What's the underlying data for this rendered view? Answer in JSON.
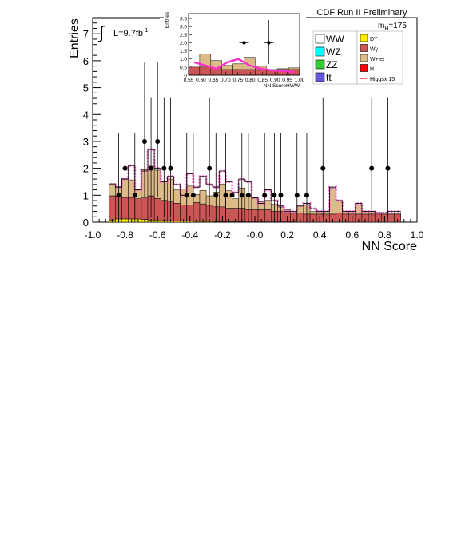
{
  "chart_data": {
    "type": "histogram-stacked",
    "title": "CDF Run II Preliminary",
    "xlabel": "NN Score",
    "ylabel": "Entries",
    "xlim": [
      -1.0,
      1.0
    ],
    "ylim": [
      0,
      7.6
    ],
    "x_ticks": [
      "-1.0",
      "-0.8",
      "-0.6",
      "-0.4",
      "-0.2",
      "-0.0",
      "0.2",
      "0.4",
      "0.6",
      "0.8",
      "1.0"
    ],
    "y_ticks": [
      "0",
      "1",
      "2",
      "3",
      "4",
      "5",
      "6",
      "7"
    ],
    "luminosity_label": "L=9.7fb",
    "luminosity_exp": "-1",
    "mass_label": "m",
    "mass_sub": "H",
    "mass_value": "=175",
    "legend_left": [
      {
        "label": "WW",
        "color": "#ffffff"
      },
      {
        "label": "WZ",
        "color": "#00ffff"
      },
      {
        "label": "ZZ",
        "color": "#33cc33"
      },
      {
        "label": "tt",
        "color": "#6655dd"
      }
    ],
    "legend_right": [
      {
        "label": "DY",
        "color": "#ffee00"
      },
      {
        "label": "Wγ",
        "color": "#cc5555"
      },
      {
        "label": "W+jet",
        "color": "#ddbb88"
      },
      {
        "label": "H",
        "color": "#ff0000"
      },
      {
        "label": "Higgsx 15",
        "color": "#ff0000"
      }
    ],
    "bin_edges_start": -0.9,
    "bin_width": 0.04,
    "stack_order": [
      "DY",
      "Wγ",
      "W+jet"
    ],
    "bins": {
      "DY": [
        0.08,
        0.12,
        0.12,
        0.12,
        0.12,
        0.1,
        0.08,
        0.08,
        0.06,
        0.05,
        0.05,
        0.04,
        0.04,
        0.03,
        0.03,
        0.03,
        0.02,
        0.02,
        0.02,
        0.02,
        0.02,
        0.01,
        0.01,
        0.01,
        0.01,
        0.01,
        0.01,
        0.01,
        0.01,
        0.0,
        0.0,
        0.0,
        0.0,
        0.0,
        0.0,
        0.0,
        0.0,
        0.0,
        0.0,
        0.0,
        0.0,
        0.0,
        0.0,
        0.0,
        0.0
      ],
      "Wg": [
        0.9,
        0.85,
        0.8,
        0.8,
        0.75,
        0.8,
        0.9,
        0.8,
        0.75,
        0.7,
        0.65,
        0.6,
        0.6,
        0.7,
        0.65,
        0.6,
        0.55,
        0.55,
        0.5,
        0.5,
        0.5,
        0.45,
        0.45,
        0.45,
        0.45,
        0.4,
        0.4,
        0.35,
        0.35,
        0.35,
        0.3,
        0.3,
        0.3,
        0.3,
        0.3,
        0.35,
        0.3,
        0.3,
        0.3,
        0.3,
        0.3,
        0.3,
        0.3,
        0.3,
        0.3
      ],
      "Wjet": [
        0.45,
        0.35,
        0.7,
        0.65,
        0.35,
        1.05,
        1.1,
        1.05,
        0.7,
        0.85,
        0.5,
        0.6,
        0.7,
        0.3,
        0.5,
        0.35,
        0.55,
        0.85,
        0.65,
        0.35,
        0.75,
        0.55,
        0.45,
        0.3,
        0.35,
        0.25,
        0.15,
        0.1,
        0.0,
        0.25,
        0.35,
        0.1,
        0.1,
        0.1,
        0.95,
        0.45,
        0.1,
        0.1,
        0.35,
        0.1,
        0.1,
        0.05,
        0.05,
        0.05,
        0.05
      ]
    },
    "top_line": [
      1.4,
      1.3,
      1.6,
      2.1,
      1.2,
      1.9,
      2.7,
      2.0,
      1.5,
      1.7,
      1.4,
      1.0,
      1.8,
      1.3,
      1.7,
      1.4,
      1.3,
      1.9,
      1.5,
      1.1,
      1.6,
      1.5,
      0.9,
      0.7,
      1.2,
      0.8,
      0.6,
      0.4,
      0.4,
      0.6,
      0.7,
      0.5,
      0.4,
      0.4,
      1.3,
      0.8,
      0.4,
      0.4,
      0.7,
      0.4,
      0.4,
      0.35,
      0.35,
      0.4,
      0.4
    ],
    "data_points": [
      {
        "x": -0.84,
        "y": 1
      },
      {
        "x": -0.8,
        "y": 2
      },
      {
        "x": -0.74,
        "y": 1
      },
      {
        "x": -0.68,
        "y": 3
      },
      {
        "x": -0.64,
        "y": 2
      },
      {
        "x": -0.6,
        "y": 3
      },
      {
        "x": -0.56,
        "y": 2
      },
      {
        "x": -0.52,
        "y": 2
      },
      {
        "x": -0.42,
        "y": 1
      },
      {
        "x": -0.38,
        "y": 1
      },
      {
        "x": -0.28,
        "y": 2
      },
      {
        "x": -0.24,
        "y": 1
      },
      {
        "x": -0.18,
        "y": 1
      },
      {
        "x": -0.14,
        "y": 1
      },
      {
        "x": -0.08,
        "y": 1
      },
      {
        "x": -0.04,
        "y": 1
      },
      {
        "x": 0.06,
        "y": 1
      },
      {
        "x": 0.12,
        "y": 1
      },
      {
        "x": 0.16,
        "y": 1
      },
      {
        "x": 0.26,
        "y": 1
      },
      {
        "x": 0.32,
        "y": 1
      },
      {
        "x": 0.42,
        "y": 2
      },
      {
        "x": 0.72,
        "y": 2
      },
      {
        "x": 0.82,
        "y": 2
      }
    ],
    "inset": {
      "xlabel": "NN ScoreHWW",
      "ylabel": "Entries",
      "xlim": [
        0.55,
        1.0
      ],
      "ylim": [
        0,
        3.8
      ],
      "x_ticks": [
        "0.55",
        "0.60",
        "0.65",
        "0.70",
        "0.75",
        "0.80",
        "0.85",
        "0.90",
        "0.95",
        "1.00"
      ],
      "y_ticks": [
        "0",
        "0.5",
        "1.0",
        "1.5",
        "2.0",
        "2.5",
        "3.0",
        "3.5"
      ],
      "hist": [
        0.25,
        1.3,
        0.9,
        0.6,
        0.7,
        1.1,
        0.55,
        0.3,
        0.4,
        0.45
      ],
      "red": [
        0.5,
        0.5,
        0.45,
        0.35,
        0.35,
        0.35,
        0.35,
        0.35,
        0.35,
        0.35
      ],
      "signal": [
        0.8,
        0.6,
        0.4,
        0.8,
        1.0,
        0.6,
        0.4,
        0.3,
        0.25,
        0.2
      ],
      "data_points": [
        {
          "x": 0.775,
          "y": 2
        },
        {
          "x": 0.875,
          "y": 2
        }
      ]
    }
  }
}
